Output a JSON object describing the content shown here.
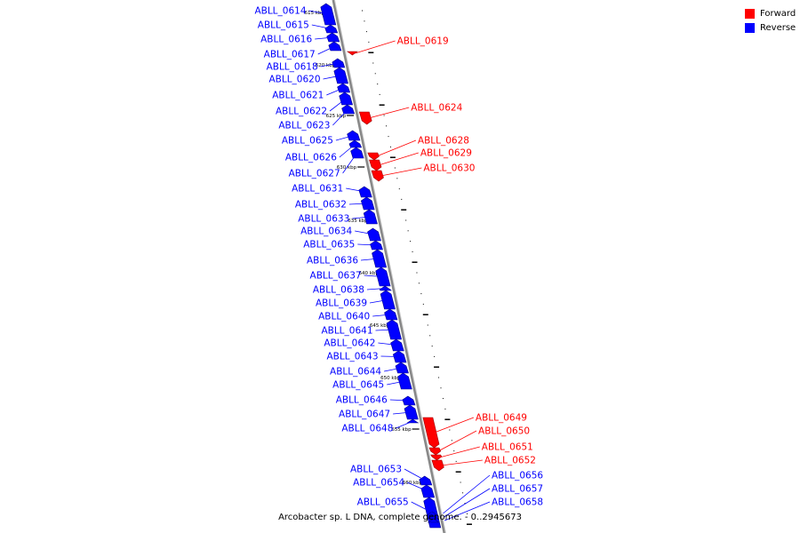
{
  "title": "Arcobacter sp. L DNA, complete genome. - 0..2945673",
  "legend": [
    {
      "label": "Forward",
      "color": "#ff0000"
    },
    {
      "label": "Reverse",
      "color": "#0000ff"
    }
  ],
  "colors": {
    "forward": "#ff0000",
    "reverse": "#0000ff",
    "backbone": "#888888"
  },
  "scale_marks": [
    "615 kbp",
    "620 kbp",
    "625 kbp",
    "630 kbp",
    "635 kbp",
    "640 kbp",
    "645 kbp",
    "650 kbp",
    "655 kbp",
    "660 kbp"
  ],
  "genes": [
    {
      "name": "ABLL_0614",
      "strand": "reverse"
    },
    {
      "name": "ABLL_0615",
      "strand": "reverse"
    },
    {
      "name": "ABLL_0616",
      "strand": "reverse"
    },
    {
      "name": "ABLL_0617",
      "strand": "reverse"
    },
    {
      "name": "ABLL_0618",
      "strand": "reverse"
    },
    {
      "name": "ABLL_0619",
      "strand": "forward"
    },
    {
      "name": "ABLL_0620",
      "strand": "reverse"
    },
    {
      "name": "ABLL_0621",
      "strand": "reverse"
    },
    {
      "name": "ABLL_0622",
      "strand": "reverse"
    },
    {
      "name": "ABLL_0623",
      "strand": "reverse"
    },
    {
      "name": "ABLL_0624",
      "strand": "forward"
    },
    {
      "name": "ABLL_0625",
      "strand": "reverse"
    },
    {
      "name": "ABLL_0626",
      "strand": "reverse"
    },
    {
      "name": "ABLL_0627",
      "strand": "reverse"
    },
    {
      "name": "ABLL_0628",
      "strand": "forward"
    },
    {
      "name": "ABLL_0629",
      "strand": "forward"
    },
    {
      "name": "ABLL_0630",
      "strand": "forward"
    },
    {
      "name": "ABLL_0631",
      "strand": "reverse"
    },
    {
      "name": "ABLL_0632",
      "strand": "reverse"
    },
    {
      "name": "ABLL_0633",
      "strand": "reverse"
    },
    {
      "name": "ABLL_0634",
      "strand": "reverse"
    },
    {
      "name": "ABLL_0635",
      "strand": "reverse"
    },
    {
      "name": "ABLL_0636",
      "strand": "reverse"
    },
    {
      "name": "ABLL_0637",
      "strand": "reverse"
    },
    {
      "name": "ABLL_0638",
      "strand": "reverse"
    },
    {
      "name": "ABLL_0639",
      "strand": "reverse"
    },
    {
      "name": "ABLL_0640",
      "strand": "reverse"
    },
    {
      "name": "ABLL_0641",
      "strand": "reverse"
    },
    {
      "name": "ABLL_0642",
      "strand": "reverse"
    },
    {
      "name": "ABLL_0643",
      "strand": "reverse"
    },
    {
      "name": "ABLL_0644",
      "strand": "reverse"
    },
    {
      "name": "ABLL_0645",
      "strand": "reverse"
    },
    {
      "name": "ABLL_0646",
      "strand": "reverse"
    },
    {
      "name": "ABLL_0647",
      "strand": "reverse"
    },
    {
      "name": "ABLL_0648",
      "strand": "reverse"
    },
    {
      "name": "ABLL_0649",
      "strand": "forward"
    },
    {
      "name": "ABLL_0650",
      "strand": "forward"
    },
    {
      "name": "ABLL_0651",
      "strand": "forward"
    },
    {
      "name": "ABLL_0652",
      "strand": "forward"
    },
    {
      "name": "ABLL_0653",
      "strand": "reverse"
    },
    {
      "name": "ABLL_0654",
      "strand": "reverse"
    },
    {
      "name": "ABLL_0655",
      "strand": "reverse"
    },
    {
      "name": "ABLL_0656",
      "strand": "reverse"
    },
    {
      "name": "ABLL_0657",
      "strand": "reverse"
    },
    {
      "name": "ABLL_0658",
      "strand": "reverse"
    }
  ]
}
